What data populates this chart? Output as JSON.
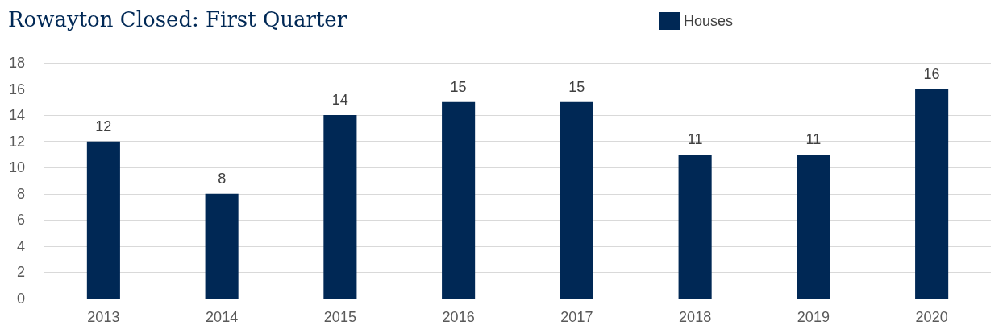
{
  "chart_data": {
    "type": "bar",
    "title": "Rowayton Closed: First Quarter",
    "categories": [
      "2013",
      "2014",
      "2015",
      "2016",
      "2017",
      "2018",
      "2019",
      "2020"
    ],
    "series": [
      {
        "name": "Houses",
        "color": "#002855",
        "values": [
          12,
          8,
          14,
          15,
          15,
          11,
          11,
          16
        ]
      }
    ],
    "ylim": [
      0,
      18
    ],
    "yticks": [
      0,
      2,
      4,
      6,
      8,
      10,
      12,
      14,
      16,
      18
    ],
    "grid": "y",
    "legend": "top",
    "data_labels": true
  }
}
